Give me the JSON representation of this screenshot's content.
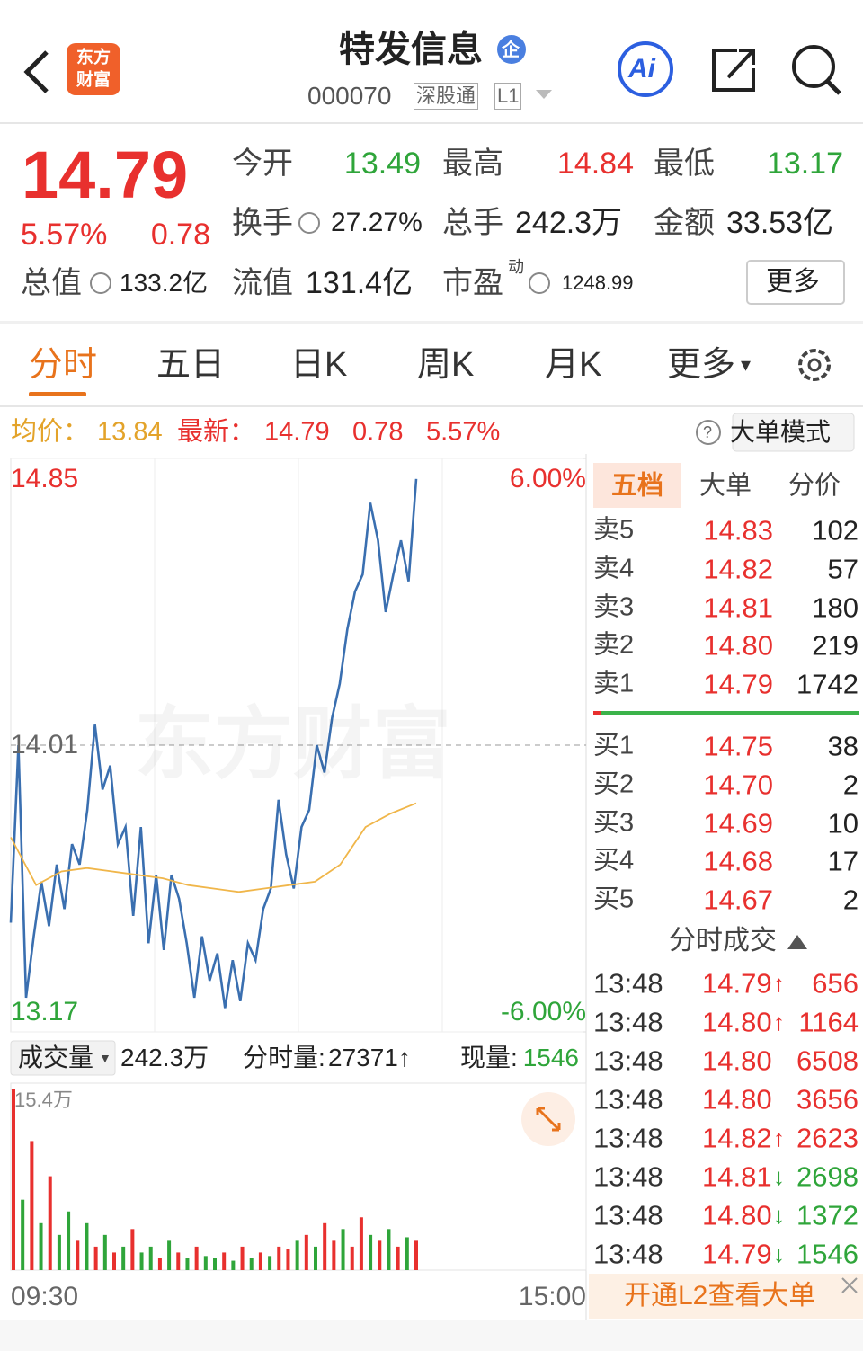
{
  "header": {
    "logo_lines": [
      "东方",
      "财富"
    ],
    "title": "特发信息",
    "badge": "企",
    "code": "000070",
    "tags": [
      "深股通",
      "L1"
    ],
    "ai": "Ai"
  },
  "quote": {
    "price": "14.79",
    "change_pct": "5.57%",
    "change": "0.78",
    "fields": [
      {
        "label": "今开",
        "value": "13.49"
      },
      {
        "label": "最高",
        "value": "14.84"
      },
      {
        "label": "最低",
        "value": "13.17"
      },
      {
        "label": "换手",
        "value": "27.27%"
      },
      {
        "label": "总手",
        "value": "242.3万"
      },
      {
        "label": "金额",
        "value": "33.53亿"
      },
      {
        "label": "总值",
        "value": "133.2亿"
      },
      {
        "label": "流值",
        "value": "131.4亿"
      },
      {
        "label": "市盈",
        "sup": "动",
        "value": "1248.99"
      }
    ],
    "more": "更多"
  },
  "tabs": [
    "分时",
    "五日",
    "日K",
    "周K",
    "月K",
    "更多"
  ],
  "info_bar": {
    "avg_label": "均价：",
    "avg": "13.84",
    "last_label": "最新：",
    "last": "14.79",
    "change": "0.78",
    "change_pct": "5.57%",
    "help": "?",
    "mode_button": "大单模式"
  },
  "intraday_chart": {
    "type": "line",
    "watermark": "东方财富",
    "ylim": [
      13.17,
      14.85
    ],
    "yticks": [
      13.17,
      14.01,
      14.85
    ],
    "y2lim": [
      -6,
      6
    ],
    "y2ticks": [
      {
        "value": -6,
        "label": "-6.00%"
      },
      {
        "value": 6,
        "label": "6.00%"
      }
    ],
    "x_labels": [
      "09:30",
      "15:00"
    ],
    "series": [
      {
        "color": "#3a6fb0",
        "values": [
          13.49,
          14.01,
          13.27,
          13.45,
          13.61,
          13.48,
          13.66,
          13.53,
          13.72,
          13.66,
          13.82,
          14.07,
          13.88,
          13.95,
          13.72,
          13.77,
          13.51,
          13.77,
          13.43,
          13.63,
          13.41,
          13.63,
          13.56,
          13.43,
          13.27,
          13.45,
          13.32,
          13.4,
          13.24,
          13.38,
          13.26,
          13.43,
          13.38,
          13.53,
          13.59,
          13.85,
          13.69,
          13.59,
          13.77,
          13.82,
          14.01,
          13.93,
          14.09,
          14.19,
          14.35,
          14.46,
          14.51,
          14.72,
          14.61,
          14.4,
          14.51,
          14.61,
          14.49,
          14.79
        ]
      },
      {
        "color": "#f0b64a",
        "values": [
          13.74,
          13.6,
          13.64,
          13.65,
          13.64,
          13.63,
          13.62,
          13.6,
          13.59,
          13.58,
          13.59,
          13.6,
          13.61,
          13.66,
          13.77,
          13.81,
          13.84
        ]
      }
    ]
  },
  "volume_bar": {
    "selector": "成交量",
    "total": "242.3万",
    "tick_vol_label": "分时量:",
    "tick_vol": "27371↑",
    "current_label": "现量:",
    "current": "1546"
  },
  "volume_chart": {
    "type": "bar",
    "ylim": [
      0,
      15.4
    ],
    "yticks": [
      {
        "value": 15.4,
        "label": "15.4万"
      }
    ],
    "values": [
      15.4,
      6,
      11,
      4,
      8,
      3,
      5,
      2.5,
      4,
      2,
      3,
      1.5,
      2,
      3.5,
      1.5,
      2,
      1,
      2.5,
      1.5,
      1,
      2,
      1.2,
      1,
      1.5,
      0.8,
      2,
      1,
      1.5,
      1.2,
      2,
      1.8,
      2.5,
      3,
      2,
      4,
      2.5,
      3.5,
      2,
      4.5,
      3,
      2.5,
      3.5,
      2,
      2.8,
      2.5
    ],
    "colors": [
      "#e8302e",
      "#2fa53a",
      "#e8302e",
      "#2fa53a",
      "#e8302e",
      "#2fa53a",
      "#2fa53a",
      "#e8302e",
      "#2fa53a",
      "#e8302e",
      "#2fa53a",
      "#e8302e",
      "#2fa53a",
      "#e8302e",
      "#2fa53a",
      "#2fa53a",
      "#e8302e",
      "#2fa53a",
      "#e8302e",
      "#2fa53a",
      "#e8302e",
      "#2fa53a",
      "#2fa53a",
      "#e8302e",
      "#2fa53a",
      "#e8302e",
      "#2fa53a",
      "#e8302e",
      "#2fa53a",
      "#e8302e",
      "#e8302e",
      "#2fa53a",
      "#e8302e",
      "#2fa53a",
      "#e8302e",
      "#e8302e",
      "#2fa53a",
      "#e8302e",
      "#e8302e",
      "#2fa53a",
      "#e8302e",
      "#2fa53a",
      "#e8302e",
      "#2fa53a",
      "#e8302e"
    ]
  },
  "order_book": {
    "tabs": [
      "五档",
      "大单",
      "分价"
    ],
    "asks": [
      {
        "label": "卖5",
        "price": "14.83",
        "volume": "102"
      },
      {
        "label": "卖4",
        "price": "14.82",
        "volume": "57"
      },
      {
        "label": "卖3",
        "price": "14.81",
        "volume": "180"
      },
      {
        "label": "卖2",
        "price": "14.80",
        "volume": "219"
      },
      {
        "label": "卖1",
        "price": "14.79",
        "volume": "1742"
      }
    ],
    "bids": [
      {
        "label": "买1",
        "price": "14.75",
        "volume": "38"
      },
      {
        "label": "买2",
        "price": "14.70",
        "volume": "2"
      },
      {
        "label": "买3",
        "price": "14.69",
        "volume": "10"
      },
      {
        "label": "买4",
        "price": "14.68",
        "volume": "17"
      },
      {
        "label": "买5",
        "price": "14.67",
        "volume": "2"
      }
    ]
  },
  "trades": {
    "title": "分时成交",
    "rows": [
      {
        "time": "13:48",
        "price": "14.79",
        "arrow": "↑",
        "volume": "656",
        "color": "#e8302e"
      },
      {
        "time": "13:48",
        "price": "14.80",
        "arrow": "↑",
        "volume": "1164",
        "color": "#e8302e"
      },
      {
        "time": "13:48",
        "price": "14.80",
        "volume": "6508",
        "color": "#e8302e"
      },
      {
        "time": "13:48",
        "price": "14.80",
        "volume": "3656",
        "color": "#e8302e"
      },
      {
        "time": "13:48",
        "price": "14.82",
        "arrow": "↑",
        "volume": "2623",
        "color": "#e8302e"
      },
      {
        "time": "13:48",
        "price": "14.81",
        "arrow": "↓",
        "volume": "2698",
        "color": "#2fa53a"
      },
      {
        "time": "13:48",
        "price": "14.80",
        "arrow": "↓",
        "volume": "1372",
        "color": "#2fa53a"
      },
      {
        "time": "13:48",
        "price": "14.79",
        "arrow": "↓",
        "volume": "1546",
        "color": "#2fa53a"
      }
    ]
  },
  "banner": {
    "text": "开通L2查看大单"
  }
}
